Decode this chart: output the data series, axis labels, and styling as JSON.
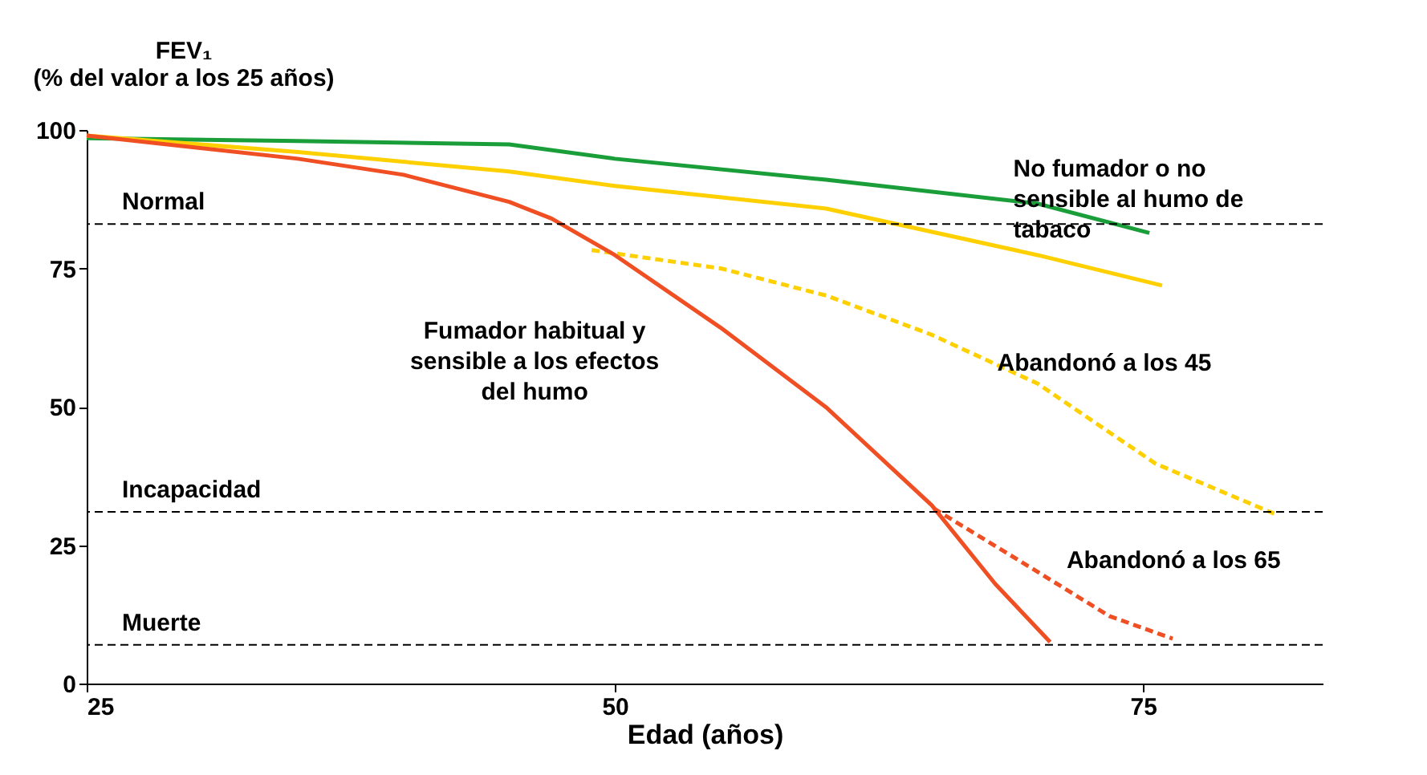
{
  "chart_data": {
    "type": "line",
    "title": "FEV₁\n(% del valor a los 25 años)",
    "xlabel": "Edad (años)",
    "xlim": [
      25,
      83.5
    ],
    "ylim": [
      0,
      100
    ],
    "xticks": [
      25,
      50,
      75
    ],
    "yticks": [
      0,
      25,
      50,
      75,
      100
    ],
    "grid": false,
    "marker": "none",
    "series": [
      {
        "name": "No fumador o no\nsensible al humo de\ntabaco",
        "color": "#1a9e3a",
        "line_style": "solid",
        "x": [
          25,
          35,
          45,
          50,
          60,
          70,
          75.3
        ],
        "values": [
          98.5,
          98,
          97.4,
          94.8,
          91,
          86.7,
          81.4
        ]
      },
      {
        "color": "#ffd000",
        "line_style": "solid",
        "x": [
          25,
          35,
          45,
          50,
          60,
          70,
          75.9
        ],
        "values": [
          99,
          96,
          92.5,
          89.9,
          85.8,
          77.4,
          71.9
        ]
      },
      {
        "name": "Abandonó a los 45",
        "color": "#ffd000",
        "line_style": "dashed",
        "x": [
          48.9,
          55,
          60,
          65,
          70,
          75.6,
          81.2
        ],
        "values": [
          78.3,
          75,
          70.1,
          63,
          54.2,
          39.7,
          30.7
        ]
      },
      {
        "name": "Fumador habitual y\nsensible a los efectos\ndel humo",
        "color": "#f04e23",
        "line_style": "solid",
        "x": [
          25,
          35,
          40,
          45,
          47,
          50,
          55,
          60,
          65,
          68,
          70.6
        ],
        "values": [
          99,
          94.8,
          91.9,
          87,
          84,
          77.4,
          64.3,
          49.9,
          32.2,
          18,
          7.5
        ]
      },
      {
        "name": "Abandonó a los 65",
        "color": "#f04e23",
        "line_style": "dashed",
        "x": [
          65.1,
          69.1,
          73.4,
          76.4
        ],
        "values": [
          31.6,
          22.3,
          12.2,
          8.1
        ]
      }
    ],
    "ref_lines": [
      {
        "axis": "y",
        "value": 83,
        "label": "Normal",
        "color": "#000000",
        "line_style": "dashed"
      },
      {
        "axis": "y",
        "value": 31,
        "label": "Incapacidad",
        "color": "#000000",
        "line_style": "dashed"
      },
      {
        "axis": "y",
        "value": 7,
        "label": "Muerte",
        "color": "#000000",
        "line_style": "dashed"
      }
    ]
  }
}
